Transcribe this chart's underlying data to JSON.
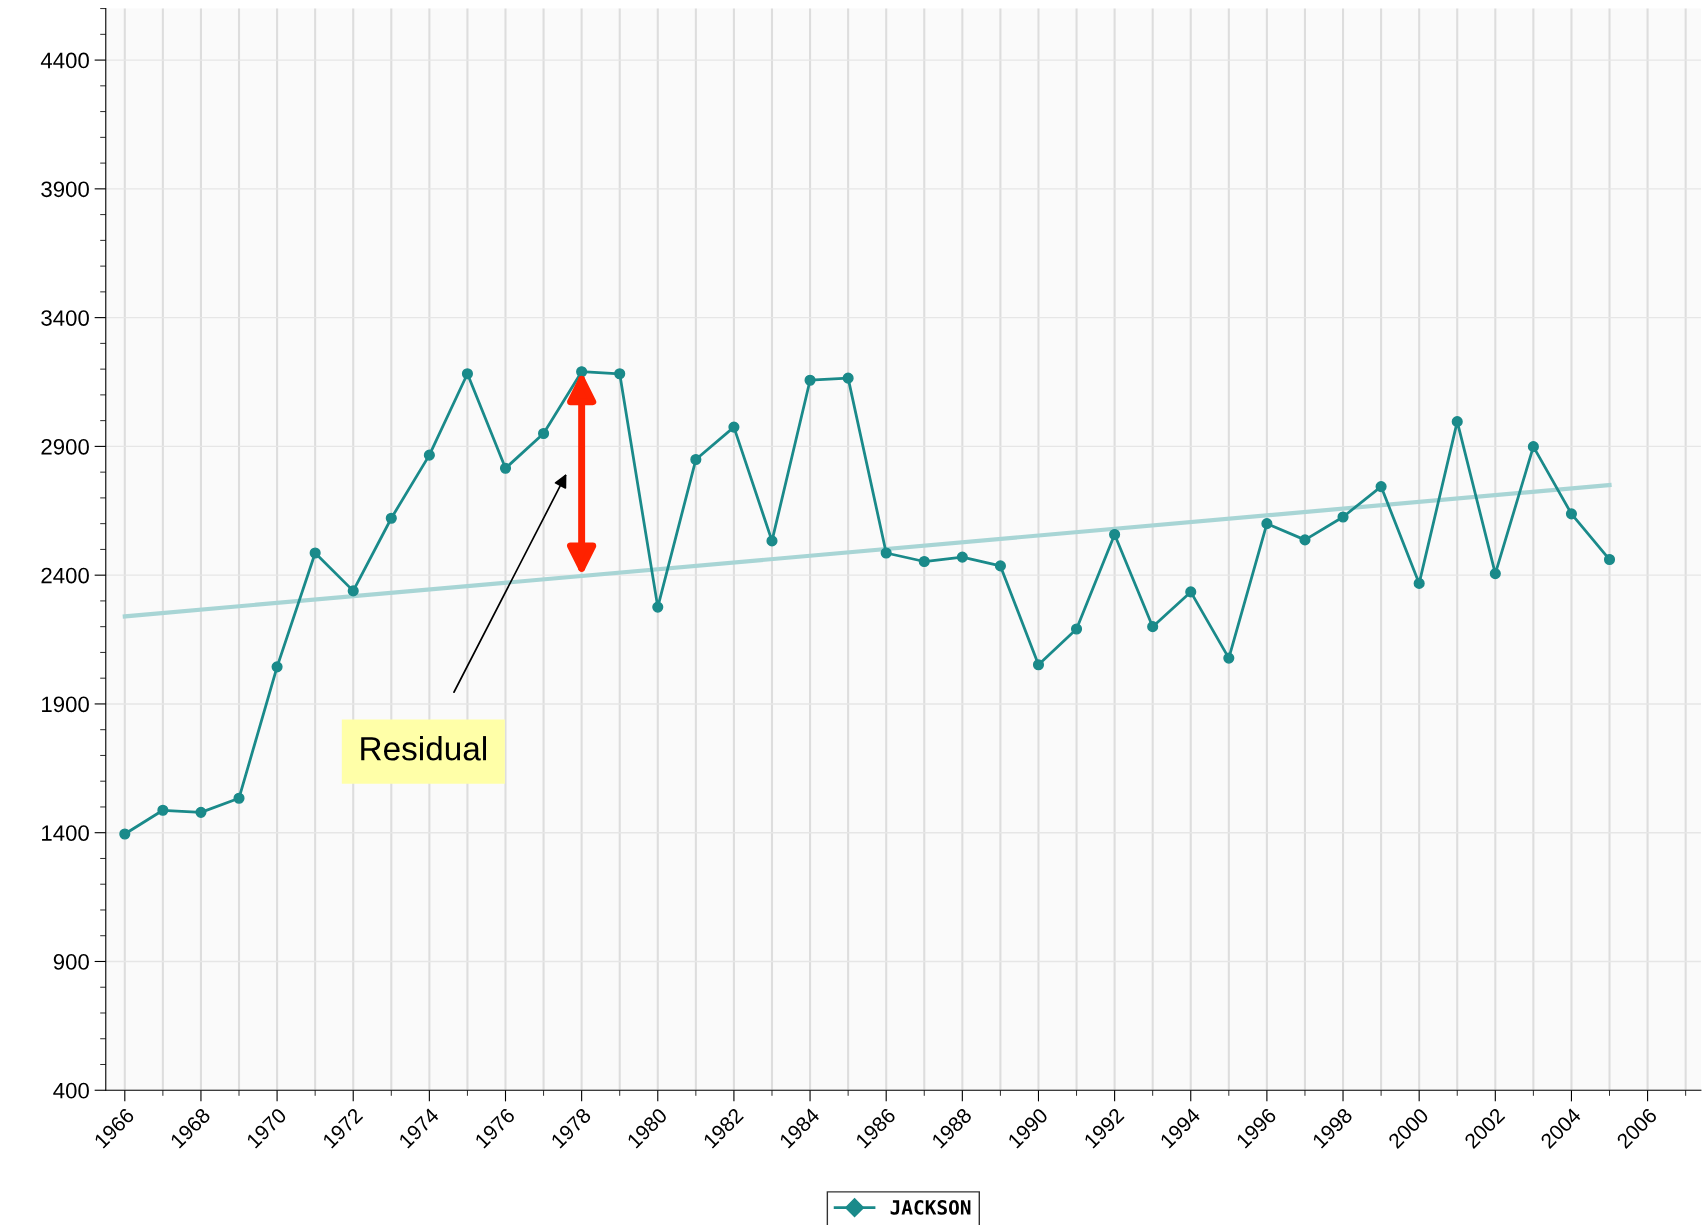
{
  "chart_data": {
    "type": "line",
    "x": [
      1966,
      1967,
      1968,
      1969,
      1970,
      1971,
      1972,
      1973,
      1974,
      1975,
      1976,
      1977,
      1978,
      1979,
      1980,
      1981,
      1982,
      1983,
      1984,
      1985,
      1986,
      1987,
      1988,
      1989,
      1990,
      1991,
      1992,
      1993,
      1994,
      1995,
      1996,
      1997,
      1998,
      1999,
      2000,
      2001,
      2002,
      2003,
      2004,
      2005
    ],
    "series": [
      {
        "name": "JACKSON",
        "color": "#1a8a8a",
        "marker": "circle",
        "values": [
          1395,
          1487,
          1479,
          1534,
          2044,
          2486,
          2339,
          2621,
          2866,
          3182,
          2815,
          2950,
          3190,
          3182,
          2276,
          2849,
          2975,
          2533,
          3157,
          3165,
          2486,
          2453,
          2470,
          2436,
          2052,
          2191,
          2558,
          2200,
          2335,
          2078,
          2600,
          2537,
          2626,
          2744,
          2368,
          2996,
          2406,
          2899,
          2638,
          2461
        ]
      },
      {
        "type": "line",
        "color": "#a8d5d5",
        "marker": "none",
        "x": [
          1966,
          2005
        ],
        "values": [
          2240,
          2750
        ]
      }
    ],
    "xlim": [
      1965.5,
      2007.4
    ],
    "ylim": [
      400,
      4600
    ],
    "xticks": [
      1966,
      1968,
      1970,
      1972,
      1974,
      1976,
      1978,
      1980,
      1982,
      1984,
      1986,
      1988,
      1990,
      1992,
      1994,
      1996,
      1998,
      2000,
      2002,
      2004,
      2006
    ],
    "yticks": [
      400,
      900,
      1400,
      1900,
      2400,
      2900,
      3400,
      3900,
      4400
    ],
    "grid": true,
    "legend": "bottom",
    "annotations": [
      "Residual"
    ]
  }
}
